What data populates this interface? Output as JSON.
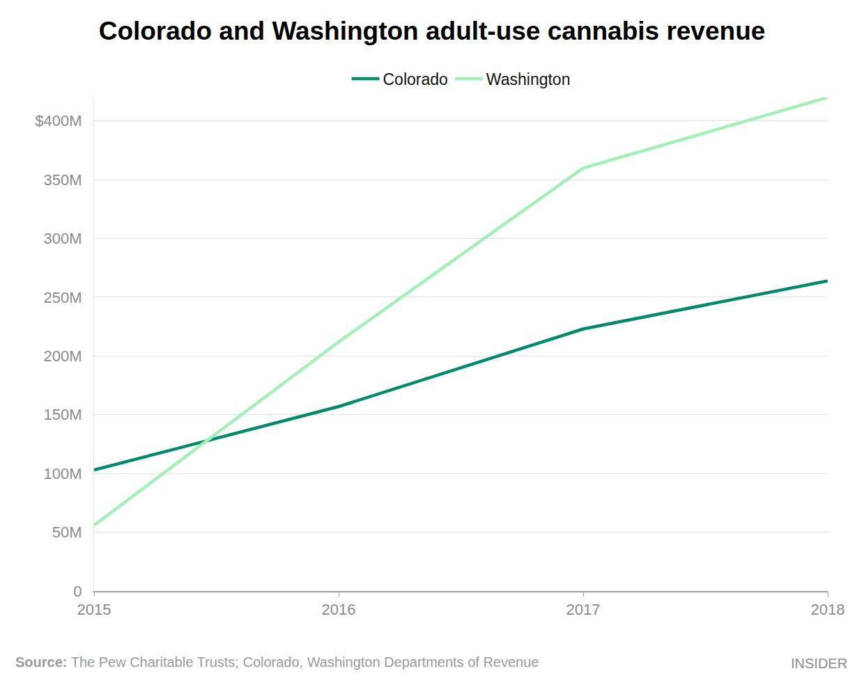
{
  "chart_data": {
    "type": "line",
    "title": "Colorado and Washington adult-use cannabis revenue",
    "x": [
      2015,
      2016,
      2017,
      2018
    ],
    "series": [
      {
        "name": "Colorado",
        "color": "#03896b",
        "values": [
          103,
          157,
          223,
          264
        ]
      },
      {
        "name": "Washington",
        "color": "#a2f0b8",
        "values": [
          56,
          212,
          360,
          420
        ]
      }
    ],
    "xlim": [
      2015,
      2018
    ],
    "xticks": [
      2015,
      2016,
      2017,
      2018
    ],
    "ylim": [
      0,
      420
    ],
    "yticks": [
      0,
      {
        "value": 50,
        "label": "50M"
      },
      {
        "value": 100,
        "label": "100M"
      },
      {
        "value": 150,
        "label": "150M"
      },
      {
        "value": 200,
        "label": "200M"
      },
      {
        "value": 250,
        "label": "250M"
      },
      {
        "value": 300,
        "label": "300M"
      },
      {
        "value": 350,
        "label": "350M"
      },
      {
        "value": 400,
        "label": "$400M"
      }
    ],
    "grid": true,
    "legend": "top",
    "source": {
      "label": "Source:",
      "text": "The Pew Charitable Trusts; Colorado, Washington Departments of Revenue"
    },
    "credit": "INSIDER"
  }
}
